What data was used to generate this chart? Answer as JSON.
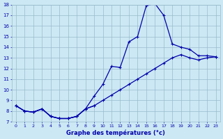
{
  "xlabel": "Graphe des températures (°c)",
  "bg_color": "#cce8f4",
  "line_color": "#0000aa",
  "grid_color": "#99bbcc",
  "hours": [
    0,
    1,
    2,
    3,
    4,
    5,
    6,
    7,
    8,
    9,
    10,
    11,
    12,
    13,
    14,
    15,
    16,
    17,
    18,
    19,
    20,
    21,
    22,
    23
  ],
  "line1": [
    8.5,
    8.0,
    7.9,
    8.2,
    7.5,
    7.3,
    7.3,
    7.5,
    8.2,
    9.4,
    10.5,
    12.2,
    12.1,
    14.5,
    15.0,
    17.9,
    18.1,
    17.0,
    14.3,
    14.0,
    13.8,
    13.2,
    13.2,
    13.1
  ],
  "line2": [
    8.5,
    8.0,
    7.9,
    8.2,
    7.5,
    7.3,
    7.3,
    7.5,
    8.2,
    8.5,
    9.0,
    9.5,
    10.0,
    10.5,
    11.0,
    11.5,
    12.0,
    12.5,
    13.0,
    13.3,
    13.0,
    12.8,
    13.0,
    13.1
  ],
  "line3_x": [
    0,
    1,
    2,
    3,
    4,
    5,
    6,
    7,
    8,
    9
  ],
  "line3_y": [
    8.5,
    8.0,
    7.9,
    8.2,
    7.5,
    7.3,
    7.3,
    7.5,
    8.2,
    8.5
  ],
  "ylim": [
    7,
    18
  ],
  "yticks": [
    7,
    8,
    9,
    10,
    11,
    12,
    13,
    14,
    15,
    16,
    17,
    18
  ],
  "xlim_min": -0.5,
  "xlim_max": 23.5
}
